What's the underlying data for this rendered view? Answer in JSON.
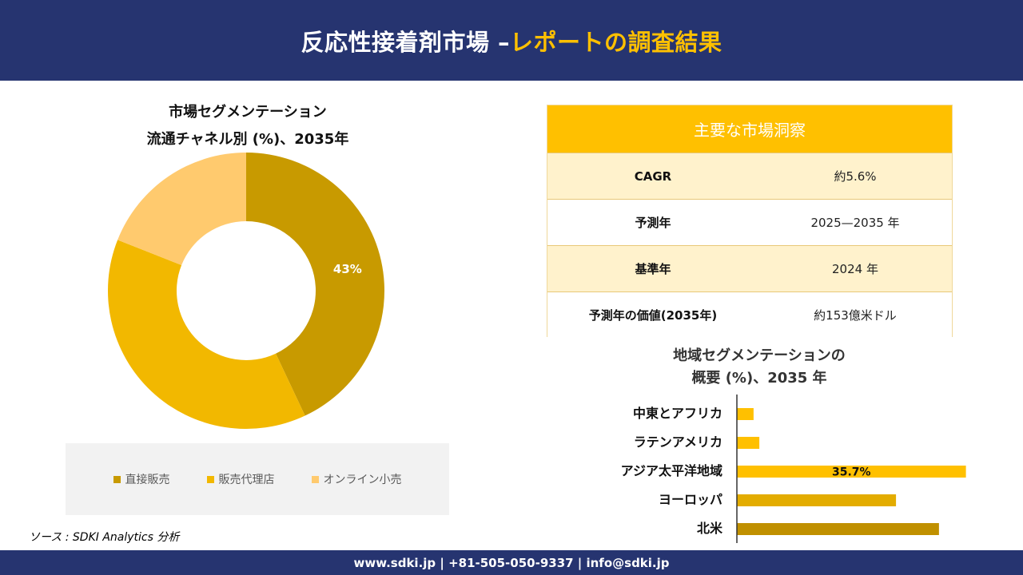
{
  "header": {
    "title_main": "反応性接着剤市場 –",
    "title_accent": "レポートの調査結果"
  },
  "donut": {
    "title_line1": "市場セグメンテーション",
    "title_line2": "流通チャネル別 (%)、2035年"
  },
  "legend": [
    {
      "label": "直接販売",
      "color": "#C89A00"
    },
    {
      "label": "販売代理店",
      "color": "#F2B800"
    },
    {
      "label": "オンライン小売",
      "color": "#FFCA6E"
    }
  ],
  "insights": {
    "heading": "主要な市場洞察",
    "rows": [
      {
        "label": "CAGR",
        "value": "約5.6%"
      },
      {
        "label": "予測年",
        "value": "2025—2035 年"
      },
      {
        "label": "基準年",
        "value": "2024 年"
      },
      {
        "label": "予測年の価値(2035年)",
        "value": "約153億米ドル"
      }
    ]
  },
  "bar_section": {
    "title_line1": "地域セグメンテーションの",
    "title_line2": "概要 (%)、2035 年"
  },
  "source": "ソース : SDKI Analytics 分析",
  "footer": "www.sdki.jp | +81-505-050-9337 | info@sdki.jp",
  "chart_data": [
    {
      "type": "pie",
      "categories": [
        "直接販売",
        "販売代理店",
        "オンライン小売"
      ],
      "values": [
        43,
        38,
        19
      ],
      "data_labels": [
        "43%",
        "",
        ""
      ],
      "colors": [
        "#C89A00",
        "#F2B800",
        "#FFCA6E"
      ]
    },
    {
      "type": "bar",
      "orientation": "horizontal",
      "categories": [
        "中東とアフリカ",
        "ラテンアメリカ",
        "アジア太平洋地域",
        "ヨーロッパ",
        "北米"
      ],
      "values": [
        2.6,
        3.5,
        35.7,
        24.8,
        31.5
      ],
      "data_labels": [
        "",
        "",
        "35.7%",
        "",
        ""
      ],
      "colors": [
        "#FFC000",
        "#FFC000",
        "#FFC000",
        "#E3AC00",
        "#C09000"
      ],
      "xlim": [
        0,
        36
      ]
    }
  ]
}
